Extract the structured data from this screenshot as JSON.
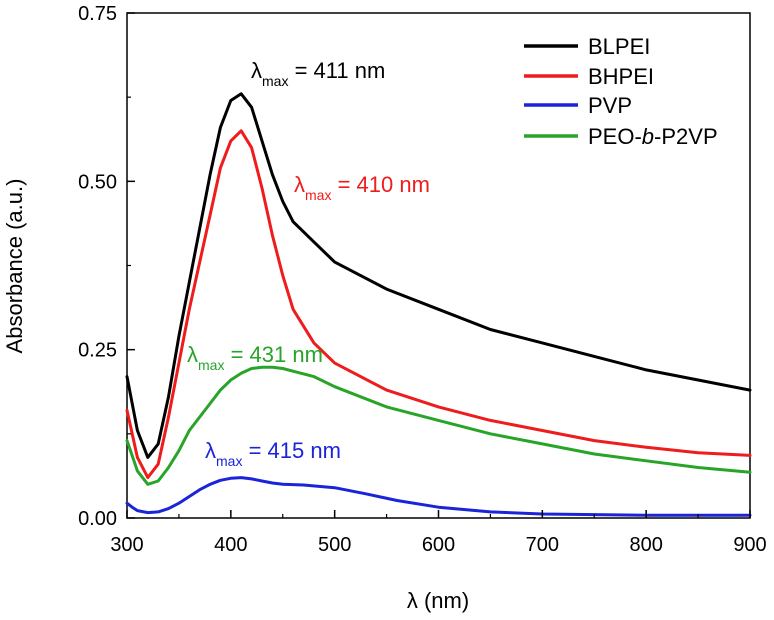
{
  "chart_data": {
    "type": "line",
    "title": "",
    "xlabel": "λ (nm)",
    "ylabel": "Absorbance (a.u.)",
    "xlim": [
      300,
      900
    ],
    "ylim": [
      0,
      0.75
    ],
    "xticks": [
      "300",
      "400",
      "500",
      "600",
      "700",
      "800",
      "900"
    ],
    "yticks": [
      "0.00",
      "0.25",
      "0.50",
      "0.75"
    ],
    "grid": false,
    "legend_position": "top-right",
    "series": [
      {
        "name": "BLPEI",
        "color": "#000000",
        "x": [
          300,
          310,
          320,
          330,
          340,
          350,
          360,
          370,
          380,
          390,
          400,
          410,
          420,
          430,
          440,
          450,
          460,
          480,
          500,
          550,
          600,
          650,
          700,
          750,
          800,
          850,
          900
        ],
        "y": [
          0.21,
          0.13,
          0.09,
          0.11,
          0.18,
          0.27,
          0.35,
          0.43,
          0.51,
          0.58,
          0.62,
          0.63,
          0.61,
          0.56,
          0.51,
          0.47,
          0.44,
          0.41,
          0.38,
          0.34,
          0.31,
          0.28,
          0.26,
          0.24,
          0.22,
          0.205,
          0.19
        ]
      },
      {
        "name": "BHPEI",
        "color": "#ee1c1c",
        "x": [
          300,
          310,
          320,
          330,
          340,
          350,
          360,
          370,
          380,
          390,
          400,
          410,
          420,
          430,
          440,
          450,
          460,
          480,
          500,
          550,
          600,
          650,
          700,
          750,
          800,
          850,
          900
        ],
        "y": [
          0.16,
          0.09,
          0.06,
          0.08,
          0.15,
          0.23,
          0.31,
          0.38,
          0.45,
          0.52,
          0.56,
          0.575,
          0.55,
          0.49,
          0.42,
          0.36,
          0.31,
          0.26,
          0.23,
          0.19,
          0.165,
          0.145,
          0.13,
          0.115,
          0.105,
          0.097,
          0.093
        ]
      },
      {
        "name": "PVP",
        "color": "#1b24d8",
        "x": [
          300,
          305,
          310,
          320,
          330,
          340,
          350,
          360,
          370,
          380,
          390,
          400,
          410,
          420,
          430,
          440,
          450,
          470,
          500,
          530,
          560,
          600,
          650,
          700,
          750,
          800,
          850,
          900
        ],
        "y": [
          0.022,
          0.016,
          0.011,
          0.008,
          0.009,
          0.014,
          0.022,
          0.032,
          0.042,
          0.05,
          0.056,
          0.059,
          0.06,
          0.058,
          0.055,
          0.052,
          0.05,
          0.049,
          0.045,
          0.036,
          0.026,
          0.016,
          0.009,
          0.006,
          0.005,
          0.004,
          0.004,
          0.004
        ]
      },
      {
        "name": "PEO-b-P2VP",
        "color": "#28a428",
        "x": [
          300,
          310,
          320,
          330,
          340,
          350,
          360,
          370,
          380,
          390,
          400,
          410,
          420,
          430,
          440,
          450,
          460,
          480,
          500,
          550,
          600,
          650,
          700,
          750,
          800,
          850,
          900
        ],
        "y": [
          0.115,
          0.07,
          0.05,
          0.055,
          0.075,
          0.1,
          0.13,
          0.15,
          0.17,
          0.19,
          0.205,
          0.215,
          0.222,
          0.224,
          0.224,
          0.222,
          0.218,
          0.21,
          0.195,
          0.165,
          0.145,
          0.125,
          0.11,
          0.095,
          0.085,
          0.075,
          0.068
        ]
      }
    ],
    "legend": [
      "BLPEI",
      "BHPEI",
      "PVP",
      "PEO-b-P2VP"
    ],
    "annotations": [
      {
        "text": "λ",
        "sub": "max",
        "rest": " = 411 nm",
        "color": "#000000",
        "series": "BLPEI"
      },
      {
        "text": "λ",
        "sub": "max",
        "rest": " = 410 nm",
        "color": "#ee1c1c",
        "series": "BHPEI"
      },
      {
        "text": "λ",
        "sub": "max",
        "rest": " = 431 nm",
        "color": "#28a428",
        "series": "PEO-b-P2VP"
      },
      {
        "text": "λ",
        "sub": "max",
        "rest": " = 415 nm",
        "color": "#1b24d8",
        "series": "PVP"
      }
    ]
  }
}
